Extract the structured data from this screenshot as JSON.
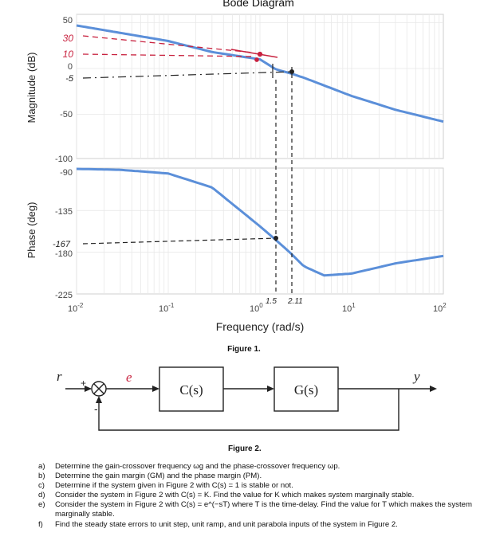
{
  "figure1": {
    "title": "Bode Diagram",
    "caption": "Figure 1.",
    "xlabel": "Frequency  (rad/s)",
    "ylabel_top": "Magnitude (dB)",
    "ylabel_bottom": "Phase (deg)",
    "mag_ticks": [
      "50",
      "0",
      "-50",
      "-100"
    ],
    "phase_ticks": [
      "-90",
      "-135",
      "-180",
      "-225"
    ],
    "x_ticks": [
      {
        "base": "10",
        "exp": "-2"
      },
      {
        "base": "10",
        "exp": "-1"
      },
      {
        "base": "10",
        "exp": "0"
      },
      {
        "base": "10",
        "exp": "1"
      },
      {
        "base": "10",
        "exp": "2"
      }
    ],
    "annotations": {
      "mag_30": "30",
      "mag_10": "10",
      "mag_minus5": "-5",
      "phase_167": "-167",
      "freq_1_5": "1.5",
      "freq_2_11": "2.11"
    },
    "colors": {
      "curve": "#5b8fd9",
      "red_ink": "#c8223f",
      "ink": "#222222"
    }
  },
  "chart_data": [
    {
      "type": "line",
      "title": "Bode Diagram",
      "xlabel": "Frequency  (rad/s)",
      "ylabel": "Magnitude (dB)",
      "xscale": "log",
      "xlim": [
        0.01,
        100
      ],
      "ylim": [
        -100,
        50
      ],
      "grid": true,
      "series": [
        {
          "x": [
            0.01,
            0.1,
            0.3,
            1,
            1.5,
            2.11,
            3,
            10,
            30,
            100
          ],
          "y": [
            47,
            30,
            18,
            10,
            -1,
            -5,
            -10,
            -30,
            -45,
            -58
          ]
        }
      ]
    },
    {
      "type": "line",
      "ylabel": "Phase (deg)",
      "xscale": "log",
      "xlim": [
        0.01,
        100
      ],
      "ylim": [
        -225,
        -90
      ],
      "grid": true,
      "series": [
        {
          "x": [
            0.01,
            0.03,
            0.1,
            0.3,
            1,
            1.5,
            2.11,
            3,
            5,
            10,
            30,
            100
          ],
          "y": [
            -90,
            -91,
            -95,
            -110,
            -152,
            -167,
            -180,
            -195,
            -205,
            -203,
            -192,
            -184
          ]
        }
      ]
    }
  ],
  "figure2": {
    "caption": "Figure 2.",
    "input_label": "r",
    "error_label": "e",
    "output_label": "y",
    "plus_sign": "+",
    "minus_sign": "-",
    "block1": "C(s)",
    "block2": "G(s)"
  },
  "questions": [
    {
      "letter": "a)",
      "text": "Determine the gain-crossover frequency ωg and the phase-crossover frequency ωp."
    },
    {
      "letter": "b)",
      "text": "Determine the gain margin (GM) and the phase margin (PM)."
    },
    {
      "letter": "c)",
      "text": "Determine if the system given in Figure 2 with C(s) = 1 is stable or not."
    },
    {
      "letter": "d)",
      "text": "Consider the system in Figure 2 with C(s) = K. Find the value for K which makes system marginally stable."
    },
    {
      "letter": "e)",
      "text": "Consider the system in Figure 2 with C(s) = e^(−sT) where T is the time-delay. Find the value for T which makes the system marginally stable."
    },
    {
      "letter": "f)",
      "text": "Find the steady state errors to unit step, unit ramp, and unit parabola inputs of the system in Figure 2."
    }
  ]
}
